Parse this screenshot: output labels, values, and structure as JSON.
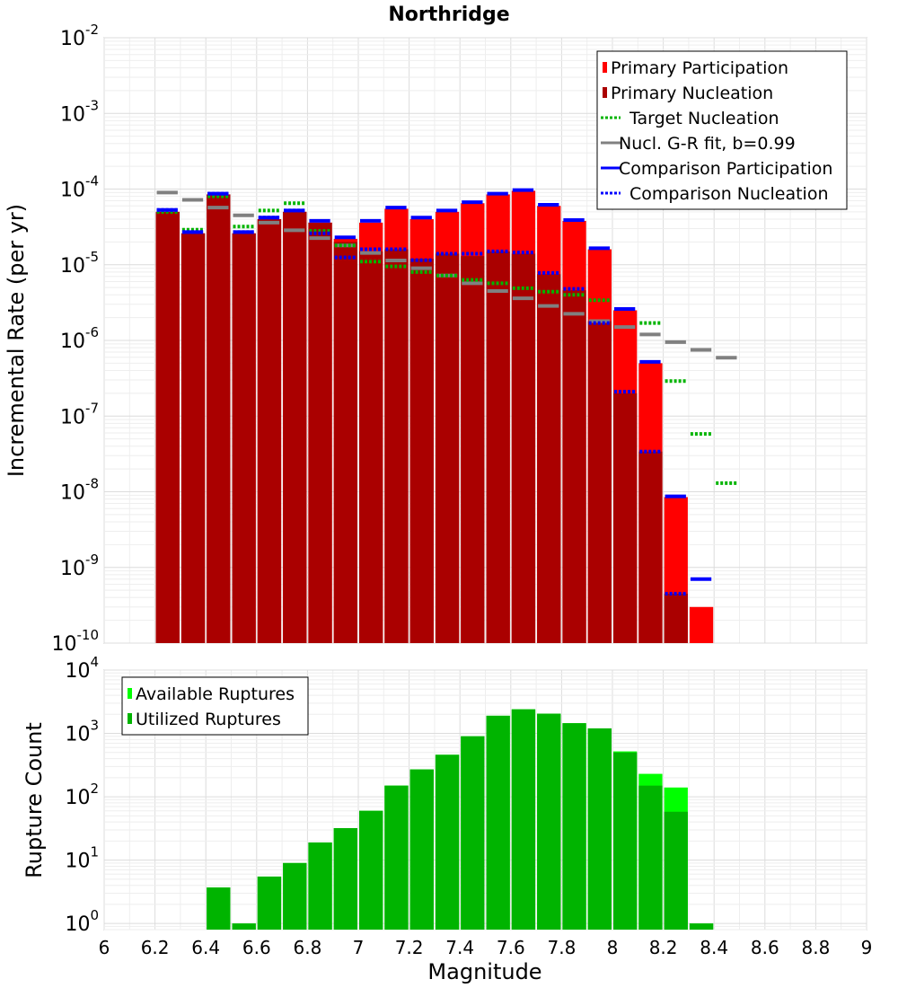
{
  "chart_data": [
    {
      "type": "bar",
      "title": "Northridge",
      "ylabel": "Incremental Rate (per yr)",
      "xlabel": "",
      "yscale": "log",
      "xlim": [
        6,
        9
      ],
      "ylim": [
        1e-10,
        0.01
      ],
      "grid": true,
      "legend_placement": "top-right",
      "bin_centers": [
        6.25,
        6.35,
        6.45,
        6.55,
        6.65,
        6.75,
        6.85,
        6.95,
        7.05,
        7.15,
        7.25,
        7.35,
        7.45,
        7.55,
        7.65,
        7.75,
        7.85,
        7.95,
        8.05,
        8.15,
        8.25,
        8.35,
        8.45
      ],
      "series": [
        {
          "name": "Primary Participation",
          "kind": "bar",
          "color": "#ff0000",
          "values": [
            5e-05,
            2.6e-05,
            8.5e-05,
            2.6e-05,
            4e-05,
            5e-05,
            3.6e-05,
            2.2e-05,
            3.6e-05,
            5.5e-05,
            4e-05,
            5e-05,
            6.5e-05,
            8.5e-05,
            9.5e-05,
            6e-05,
            3.8e-05,
            1.6e-05,
            2.5e-06,
            5e-07,
            8.5e-09,
            3e-10,
            null
          ]
        },
        {
          "name": "Primary Nucleation",
          "kind": "bar",
          "color": "#aa0000",
          "values": [
            5e-05,
            2.6e-05,
            8.5e-05,
            2.6e-05,
            4e-05,
            5e-05,
            3.6e-05,
            2e-05,
            1.5e-05,
            1.6e-05,
            1.2e-05,
            1.4e-05,
            1.3e-05,
            1.5e-05,
            1.4e-05,
            7.5e-06,
            4.6e-06,
            1.8e-06,
            2e-07,
            3.4e-08,
            4.5e-10,
            null,
            null
          ]
        },
        {
          "name": "Target Nucleation",
          "kind": "level-dotted",
          "color": "#00b400",
          "values": [
            5e-05,
            2.9e-05,
            8e-05,
            3.2e-05,
            5.2e-05,
            6.5e-05,
            2.8e-05,
            1.8e-05,
            1.1e-05,
            9.5e-06,
            8e-06,
            7.2e-06,
            6.3e-06,
            5.7e-06,
            4.9e-06,
            4.4e-06,
            4e-06,
            3.4e-06,
            2.6e-06,
            1.7e-06,
            2.9e-07,
            5.8e-08,
            1.3e-08
          ]
        },
        {
          "name": "Nucl. G-R fit, b=0.99",
          "kind": "level-solid",
          "color": "#808080",
          "values": [
            9e-05,
            7.2e-05,
            5.7e-05,
            4.5e-05,
            3.6e-05,
            2.85e-05,
            2.25e-05,
            1.8e-05,
            1.43e-05,
            1.14e-05,
            9e-06,
            7.2e-06,
            5.7e-06,
            4.5e-06,
            3.6e-06,
            2.85e-06,
            2.25e-06,
            1.8e-06,
            1.5e-06,
            1.2e-06,
            9.5e-07,
            7.5e-07,
            5.9e-07
          ]
        },
        {
          "name": "Comparison Participation",
          "kind": "level-solid",
          "color": "#0000ff",
          "values": [
            5.3e-05,
            2.7e-05,
            8.7e-05,
            2.7e-05,
            4.2e-05,
            5.2e-05,
            3.8e-05,
            2.3e-05,
            3.8e-05,
            5.7e-05,
            4.2e-05,
            5.2e-05,
            6.7e-05,
            8.7e-05,
            9.7e-05,
            6.2e-05,
            3.9e-05,
            1.65e-05,
            2.6e-06,
            5.2e-07,
            8.7e-09,
            7e-10,
            null
          ]
        },
        {
          "name": "Comparison Nucleation",
          "kind": "level-dotted",
          "color": "#0000ff",
          "values": [
            5.3e-05,
            2.7e-05,
            8.7e-05,
            2.7e-05,
            4.2e-05,
            5.2e-05,
            2.6e-05,
            1.25e-05,
            1.6e-05,
            1.6e-05,
            1.15e-05,
            1.4e-05,
            1.4e-05,
            1.5e-05,
            1.45e-05,
            7.8e-06,
            4.8e-06,
            1.7e-06,
            2.1e-07,
            3.4e-08,
            4.5e-10,
            null,
            null
          ]
        }
      ],
      "yticks": [
        {
          "base": "10",
          "exp": "-10",
          "value": 1e-10
        },
        {
          "base": "10",
          "exp": "-9",
          "value": 1e-09
        },
        {
          "base": "10",
          "exp": "-8",
          "value": 1e-08
        },
        {
          "base": "10",
          "exp": "-7",
          "value": 1e-07
        },
        {
          "base": "10",
          "exp": "-6",
          "value": 1e-06
        },
        {
          "base": "10",
          "exp": "-5",
          "value": 1e-05
        },
        {
          "base": "10",
          "exp": "-4",
          "value": 0.0001
        },
        {
          "base": "10",
          "exp": "-3",
          "value": 0.001
        },
        {
          "base": "10",
          "exp": "-2",
          "value": 0.01
        }
      ]
    },
    {
      "type": "bar",
      "title": "",
      "ylabel": "Rupture Count",
      "xlabel": "Magnitude",
      "yscale": "log",
      "xlim": [
        6,
        9
      ],
      "ylim": [
        0.8,
        10000
      ],
      "grid": true,
      "legend_placement": "top-left",
      "bin_centers": [
        6.25,
        6.35,
        6.45,
        6.55,
        6.65,
        6.75,
        6.85,
        6.95,
        7.05,
        7.15,
        7.25,
        7.35,
        7.45,
        7.55,
        7.65,
        7.75,
        7.85,
        7.95,
        8.05,
        8.15,
        8.25,
        8.35
      ],
      "series": [
        {
          "name": "Available Ruptures",
          "kind": "bar",
          "color": "#00ff00",
          "values": [
            null,
            null,
            3.7,
            1,
            5.5,
            9,
            19,
            32,
            60,
            150,
            270,
            460,
            900,
            1900,
            2400,
            2050,
            1450,
            1200,
            520,
            230,
            140,
            1
          ]
        },
        {
          "name": "Utilized Ruptures",
          "kind": "bar",
          "color": "#00b400",
          "values": [
            null,
            null,
            3.7,
            1,
            5.5,
            9,
            19,
            32,
            60,
            150,
            270,
            460,
            900,
            1900,
            2400,
            2050,
            1450,
            1200,
            500,
            150,
            58,
            1
          ]
        }
      ],
      "yticks": [
        {
          "base": "10",
          "exp": "0",
          "value": 1
        },
        {
          "base": "10",
          "exp": "1",
          "value": 10
        },
        {
          "base": "10",
          "exp": "2",
          "value": 100
        },
        {
          "base": "10",
          "exp": "3",
          "value": 1000
        },
        {
          "base": "10",
          "exp": "4",
          "value": 10000
        }
      ],
      "xticks": [
        "6",
        "6.2",
        "6.4",
        "6.6",
        "6.8",
        "7",
        "7.2",
        "7.4",
        "7.6",
        "7.8",
        "8",
        "8.2",
        "8.4",
        "8.6",
        "8.8",
        "9"
      ]
    }
  ]
}
